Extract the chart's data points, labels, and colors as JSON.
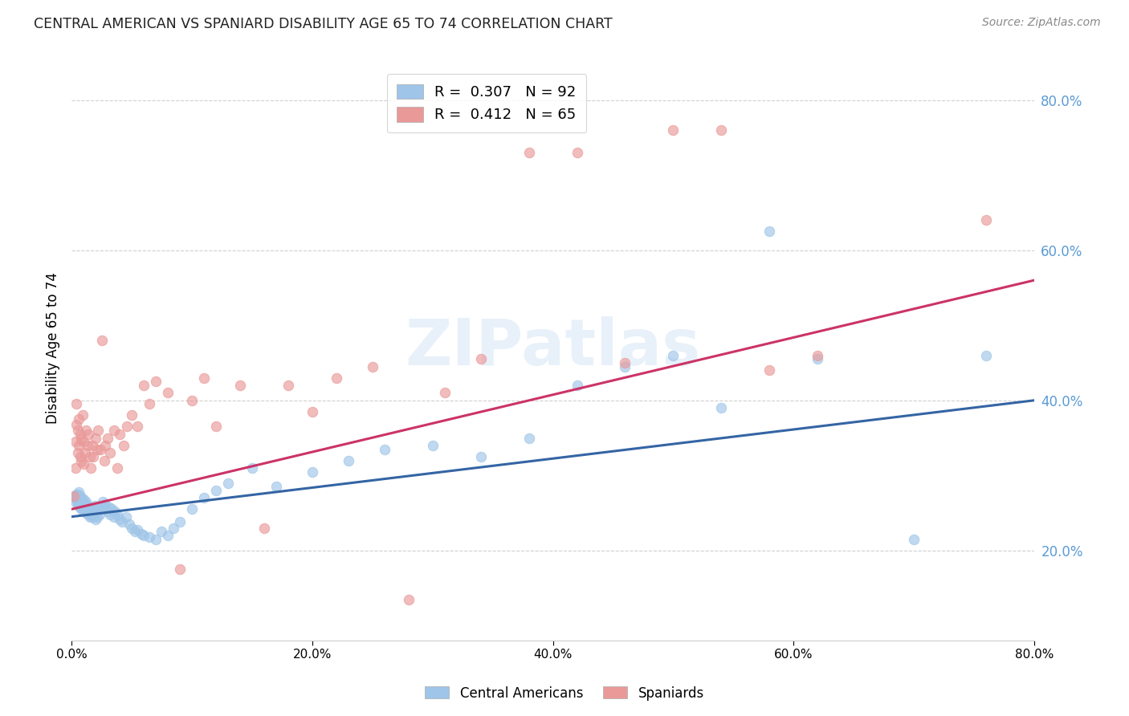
{
  "title": "CENTRAL AMERICAN VS SPANIARD DISABILITY AGE 65 TO 74 CORRELATION CHART",
  "source": "Source: ZipAtlas.com",
  "ylabel": "Disability Age 65 to 74",
  "watermark": "ZIPatlas",
  "blue_color": "#9fc5e8",
  "pink_color": "#ea9999",
  "blue_line_color": "#3465a4",
  "pink_line_color": "#cc3366",
  "xmin": 0.0,
  "xmax": 0.8,
  "ymin": 0.08,
  "ymax": 0.86,
  "yticks": [
    0.2,
    0.4,
    0.6,
    0.8
  ],
  "xticks": [
    0.0,
    0.2,
    0.4,
    0.6,
    0.8
  ],
  "blue_x": [
    0.002,
    0.003,
    0.003,
    0.004,
    0.004,
    0.005,
    0.005,
    0.005,
    0.006,
    0.006,
    0.006,
    0.007,
    0.007,
    0.007,
    0.008,
    0.008,
    0.008,
    0.009,
    0.009,
    0.01,
    0.01,
    0.01,
    0.011,
    0.011,
    0.012,
    0.012,
    0.012,
    0.013,
    0.013,
    0.014,
    0.014,
    0.015,
    0.015,
    0.016,
    0.016,
    0.017,
    0.017,
    0.018,
    0.018,
    0.019,
    0.02,
    0.02,
    0.021,
    0.022,
    0.023,
    0.024,
    0.025,
    0.026,
    0.027,
    0.028,
    0.03,
    0.031,
    0.032,
    0.033,
    0.035,
    0.036,
    0.038,
    0.04,
    0.042,
    0.045,
    0.048,
    0.05,
    0.053,
    0.055,
    0.058,
    0.06,
    0.065,
    0.07,
    0.075,
    0.08,
    0.085,
    0.09,
    0.1,
    0.11,
    0.12,
    0.13,
    0.15,
    0.17,
    0.2,
    0.23,
    0.26,
    0.3,
    0.34,
    0.38,
    0.42,
    0.46,
    0.5,
    0.54,
    0.58,
    0.62,
    0.7,
    0.76
  ],
  "blue_y": [
    0.27,
    0.265,
    0.272,
    0.268,
    0.275,
    0.26,
    0.268,
    0.275,
    0.262,
    0.27,
    0.278,
    0.258,
    0.265,
    0.272,
    0.255,
    0.262,
    0.27,
    0.258,
    0.265,
    0.252,
    0.26,
    0.268,
    0.255,
    0.262,
    0.25,
    0.258,
    0.265,
    0.252,
    0.26,
    0.248,
    0.255,
    0.245,
    0.252,
    0.248,
    0.255,
    0.245,
    0.252,
    0.248,
    0.255,
    0.26,
    0.242,
    0.25,
    0.245,
    0.255,
    0.248,
    0.255,
    0.26,
    0.265,
    0.258,
    0.262,
    0.252,
    0.258,
    0.248,
    0.255,
    0.245,
    0.252,
    0.248,
    0.242,
    0.238,
    0.245,
    0.235,
    0.23,
    0.225,
    0.228,
    0.222,
    0.22,
    0.218,
    0.215,
    0.225,
    0.22,
    0.23,
    0.238,
    0.255,
    0.27,
    0.28,
    0.29,
    0.31,
    0.285,
    0.305,
    0.32,
    0.335,
    0.34,
    0.325,
    0.35,
    0.42,
    0.445,
    0.46,
    0.39,
    0.625,
    0.455,
    0.215,
    0.46
  ],
  "pink_x": [
    0.002,
    0.003,
    0.003,
    0.004,
    0.004,
    0.005,
    0.005,
    0.006,
    0.006,
    0.007,
    0.007,
    0.008,
    0.008,
    0.009,
    0.01,
    0.01,
    0.011,
    0.012,
    0.013,
    0.014,
    0.015,
    0.016,
    0.017,
    0.018,
    0.02,
    0.021,
    0.022,
    0.024,
    0.025,
    0.027,
    0.028,
    0.03,
    0.032,
    0.035,
    0.038,
    0.04,
    0.043,
    0.046,
    0.05,
    0.055,
    0.06,
    0.065,
    0.07,
    0.08,
    0.09,
    0.1,
    0.11,
    0.12,
    0.14,
    0.16,
    0.18,
    0.2,
    0.22,
    0.25,
    0.28,
    0.31,
    0.34,
    0.38,
    0.42,
    0.46,
    0.5,
    0.54,
    0.58,
    0.62,
    0.76
  ],
  "pink_y": [
    0.272,
    0.345,
    0.31,
    0.368,
    0.395,
    0.33,
    0.36,
    0.34,
    0.375,
    0.325,
    0.355,
    0.318,
    0.348,
    0.38,
    0.315,
    0.345,
    0.33,
    0.36,
    0.34,
    0.355,
    0.325,
    0.31,
    0.34,
    0.325,
    0.35,
    0.335,
    0.36,
    0.335,
    0.48,
    0.32,
    0.34,
    0.35,
    0.33,
    0.36,
    0.31,
    0.355,
    0.34,
    0.365,
    0.38,
    0.365,
    0.42,
    0.395,
    0.425,
    0.41,
    0.175,
    0.4,
    0.43,
    0.365,
    0.42,
    0.23,
    0.42,
    0.385,
    0.43,
    0.445,
    0.135,
    0.41,
    0.455,
    0.73,
    0.73,
    0.45,
    0.76,
    0.76,
    0.44,
    0.46,
    0.64
  ]
}
